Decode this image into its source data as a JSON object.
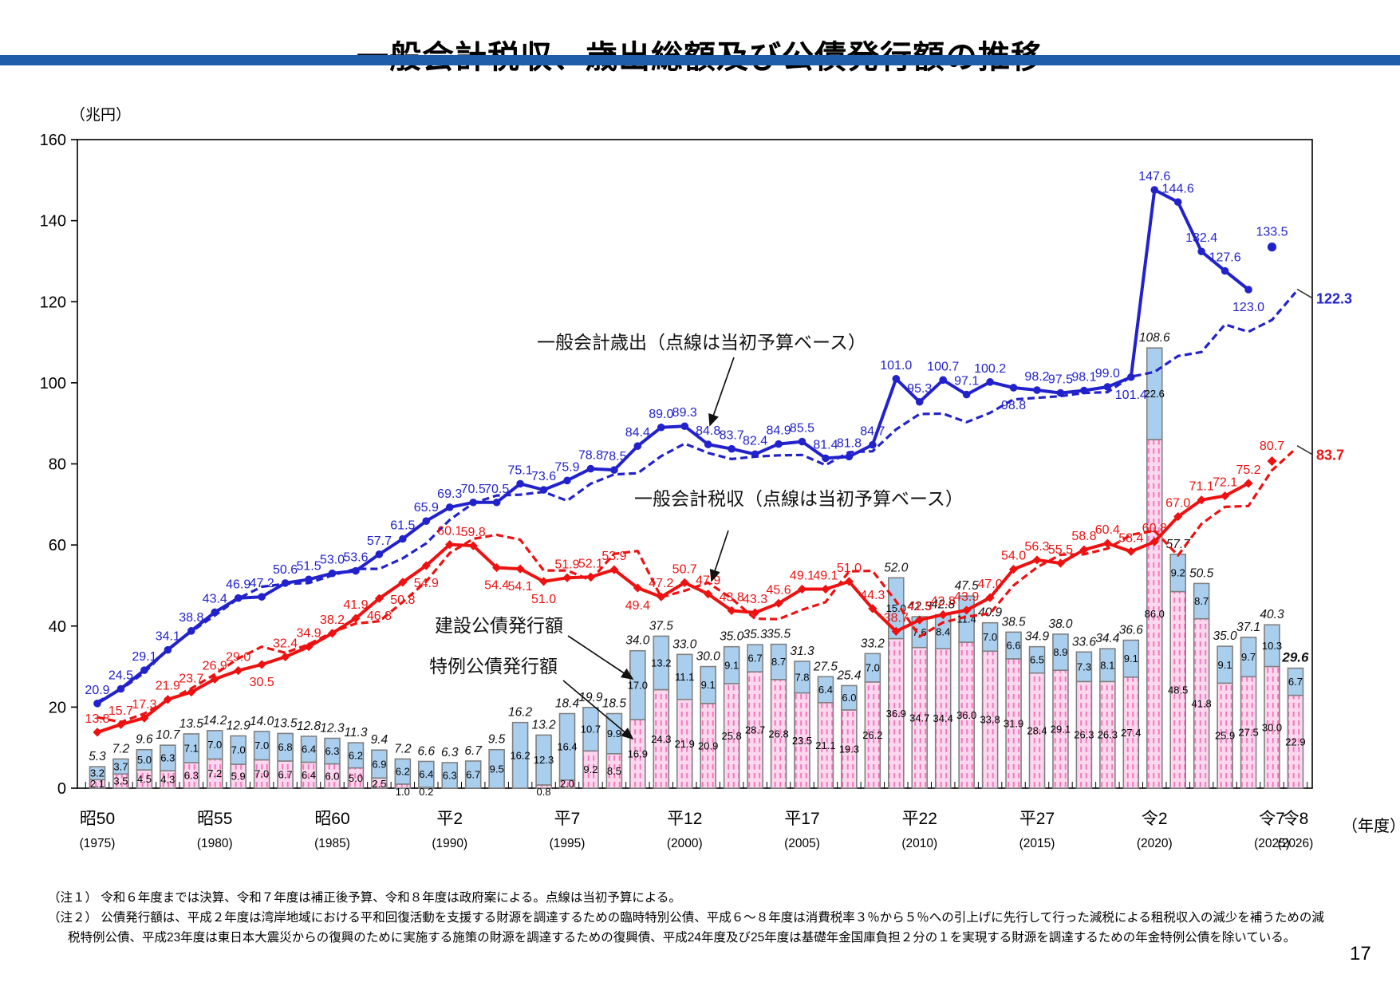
{
  "page": {
    "title": "一般会計税収、歳出総額及び公債発行額の推移",
    "page_number": "17",
    "notes": [
      "（注１） 令和６年度までは決算、令和７年度は補正後予算、令和８年度は政府案による。点線は当初予算による。",
      "（注２） 公債発行額は、平成２年度は湾岸地域における平和回復活動を支援する財源を調達するための臨時特別公債、平成６～８年度は消費税率３％から５％への引上げに先行して行った減税による租税収入の減少を補うための減税特例公債、平成23年度は東日本大震災からの復興のために実施する施策の財源を調達するための復興債、平成24年度及び25年度は基礎年金国庫負担２分の１を実現する財源を調達するための年金特例公債を除いている。"
    ]
  },
  "colors": {
    "accent_bar": "#1f5ca9",
    "expenditure": "#2222cc",
    "tax": "#ed1111",
    "bond_construction_fill": "#aacfee",
    "bond_special_fill": "#fdd7ee",
    "bond_special_hatch": "#f478bc",
    "bar_border": "#808080",
    "annotation": "#111111"
  },
  "chart_data": {
    "type": "composite",
    "title": "一般会計税収、歳出総額及び公債発行額の推移",
    "unit_label": "（兆円）",
    "axis_unit_label": "（年度）",
    "ylim": [
      0,
      160
    ],
    "ytick_step": 20,
    "grid": false,
    "years_start": 1975,
    "years_end": 2026,
    "x_ticks": [
      {
        "era": "昭50",
        "paren": "(1975)",
        "year": 1975
      },
      {
        "era": "昭55",
        "paren": "(1980)",
        "year": 1980
      },
      {
        "era": "昭60",
        "paren": "(1985)",
        "year": 1985
      },
      {
        "era": "平2",
        "paren": "(1990)",
        "year": 1990
      },
      {
        "era": "平7",
        "paren": "(1995)",
        "year": 1995
      },
      {
        "era": "平12",
        "paren": "(2000)",
        "year": 2000
      },
      {
        "era": "平17",
        "paren": "(2005)",
        "year": 2005
      },
      {
        "era": "平22",
        "paren": "(2010)",
        "year": 2010
      },
      {
        "era": "平27",
        "paren": "(2015)",
        "year": 2015
      },
      {
        "era": "令2",
        "paren": "(2020)",
        "year": 2020
      },
      {
        "era": "令7",
        "paren": "(2025)",
        "year": 2025
      },
      {
        "era": "令8",
        "paren": "(2026)",
        "year": 2026
      }
    ],
    "annotations": {
      "expenditure": "一般会計歳出（点線は当初予算ベース）",
      "tax": "一般会計税収（点線は当初予算ベース）",
      "construction": "建設公債発行額",
      "special": "特例公債発行額"
    },
    "series": [
      {
        "id": "expenditure_settled",
        "name": "一般会計歳出（決算・補正後予算）",
        "type": "line",
        "style": "solid",
        "color_key": "expenditure",
        "values": [
          20.9,
          24.5,
          29.1,
          34.1,
          38.8,
          43.4,
          46.9,
          47.2,
          50.6,
          51.5,
          53.0,
          53.6,
          57.7,
          61.5,
          65.9,
          69.3,
          70.5,
          70.5,
          75.1,
          73.6,
          75.9,
          78.8,
          78.5,
          84.4,
          89.0,
          89.3,
          84.8,
          83.7,
          82.4,
          84.9,
          85.5,
          81.4,
          81.8,
          84.7,
          101.0,
          95.3,
          100.7,
          97.1,
          100.2,
          98.8,
          98.2,
          97.5,
          98.1,
          99.0,
          101.4,
          147.6,
          144.6,
          132.4,
          127.6,
          123.0,
          null,
          null
        ],
        "isolated_point": {
          "year": 2025,
          "value": 133.5
        },
        "labels_below_years": [
          2014,
          2019,
          2024
        ]
      },
      {
        "id": "expenditure_initial",
        "name": "一般会計歳出（当初予算）",
        "type": "line",
        "style": "dashed",
        "color_key": "expenditure",
        "estimated_from_pixels": true,
        "values": [
          21.3,
          24.3,
          28.5,
          34.3,
          38.6,
          42.6,
          46.8,
          49.7,
          50.4,
          50.6,
          52.5,
          54.1,
          54.1,
          56.7,
          60.4,
          66.2,
          70.3,
          72.2,
          72.4,
          73.1,
          70.9,
          75.1,
          77.4,
          77.7,
          81.9,
          85.0,
          82.7,
          81.2,
          81.8,
          82.1,
          82.2,
          79.7,
          82.9,
          83.1,
          88.5,
          92.3,
          92.4,
          90.3,
          92.6,
          95.9,
          96.3,
          96.7,
          97.5,
          97.7,
          101.5,
          102.7,
          106.6,
          107.6,
          114.4,
          112.6,
          115.5,
          122.3
        ],
        "end_label": 122.3
      },
      {
        "id": "tax_settled",
        "name": "一般会計税収（決算・補正後予算）",
        "type": "line",
        "style": "solid",
        "color_key": "tax",
        "values": [
          13.8,
          15.7,
          17.3,
          21.9,
          23.7,
          26.9,
          29.0,
          30.5,
          32.4,
          34.9,
          38.2,
          41.9,
          46.8,
          50.8,
          54.9,
          60.1,
          59.8,
          54.4,
          54.1,
          51.0,
          51.9,
          52.1,
          53.9,
          49.4,
          47.2,
          50.7,
          47.9,
          43.8,
          43.3,
          45.6,
          49.1,
          49.1,
          51.0,
          44.3,
          38.7,
          41.5,
          42.8,
          43.9,
          47.0,
          54.0,
          56.3,
          55.5,
          58.8,
          60.4,
          58.4,
          60.8,
          67.0,
          71.1,
          72.1,
          75.2,
          null,
          null
        ],
        "isolated_point": {
          "year": 2025,
          "value": 80.7
        },
        "labels_below_years": [
          1982,
          1987,
          1988,
          1989,
          1992,
          1993,
          1994,
          1998
        ]
      },
      {
        "id": "tax_initial",
        "name": "一般会計税収（当初予算）",
        "type": "line",
        "style": "dashed",
        "color_key": "tax",
        "estimated_from_pixels": true,
        "values": [
          17.5,
          16.3,
          18.4,
          21.6,
          24.6,
          28.1,
          32.0,
          34.9,
          33.4,
          35.5,
          38.5,
          40.6,
          41.2,
          45.9,
          51.0,
          58.0,
          61.5,
          62.5,
          61.3,
          53.7,
          53.7,
          51.3,
          57.8,
          58.5,
          47.1,
          48.7,
          50.7,
          46.8,
          41.8,
          41.7,
          44.0,
          45.9,
          53.5,
          53.6,
          46.1,
          37.4,
          40.9,
          42.3,
          43.1,
          50.0,
          54.5,
          57.6,
          57.7,
          59.1,
          62.5,
          63.5,
          57.4,
          65.2,
          69.4,
          69.6,
          78.4,
          83.7
        ],
        "end_label": 83.7
      },
      {
        "id": "construction_bonds",
        "name": "建設公債発行額",
        "type": "bar",
        "color_key": "bond_construction_fill",
        "values": [
          3.2,
          3.7,
          5.0,
          6.3,
          7.1,
          7.0,
          7.0,
          7.0,
          6.8,
          6.4,
          6.3,
          6.2,
          6.9,
          6.2,
          6.4,
          6.3,
          6.7,
          9.5,
          16.2,
          12.3,
          16.4,
          10.7,
          9.9,
          17.0,
          13.2,
          11.1,
          9.1,
          9.1,
          6.7,
          8.7,
          7.8,
          6.4,
          6.0,
          7.0,
          15.0,
          7.6,
          8.4,
          11.4,
          7.0,
          6.6,
          6.5,
          8.9,
          7.3,
          8.1,
          9.1,
          22.6,
          9.2,
          8.7,
          9.1,
          9.7,
          10.3,
          6.7
        ]
      },
      {
        "id": "special_bonds",
        "name": "特例公債発行額",
        "type": "bar",
        "color_key": "bond_special_fill",
        "values": [
          2.1,
          3.5,
          4.5,
          4.3,
          6.3,
          7.2,
          5.9,
          7.0,
          6.7,
          6.4,
          6.0,
          5.0,
          2.5,
          1.0,
          0.2,
          0,
          0,
          0,
          0,
          0.8,
          2.0,
          9.2,
          8.5,
          16.9,
          24.3,
          21.9,
          20.9,
          25.8,
          28.7,
          26.8,
          23.5,
          21.1,
          19.3,
          26.2,
          36.9,
          34.7,
          34.4,
          36.0,
          33.8,
          31.9,
          28.4,
          29.1,
          26.3,
          26.3,
          27.4,
          86.0,
          48.5,
          41.8,
          25.9,
          27.5,
          30.0,
          22.9
        ]
      }
    ],
    "bar_totals": [
      5.3,
      7.2,
      9.6,
      10.7,
      13.5,
      14.2,
      12.9,
      14.0,
      13.5,
      12.8,
      12.3,
      11.3,
      9.4,
      7.2,
      6.6,
      6.3,
      6.7,
      9.5,
      16.2,
      13.2,
      18.4,
      19.9,
      18.5,
      34.0,
      37.5,
      33.0,
      30.0,
      35.0,
      35.3,
      35.5,
      31.3,
      27.5,
      25.4,
      33.2,
      52.0,
      42.3,
      42.8,
      47.5,
      40.9,
      38.5,
      34.9,
      38.0,
      33.6,
      34.4,
      36.6,
      108.6,
      57.7,
      50.5,
      35.0,
      37.1,
      40.3,
      29.6
    ],
    "bar_total_bold_year": 2026
  }
}
